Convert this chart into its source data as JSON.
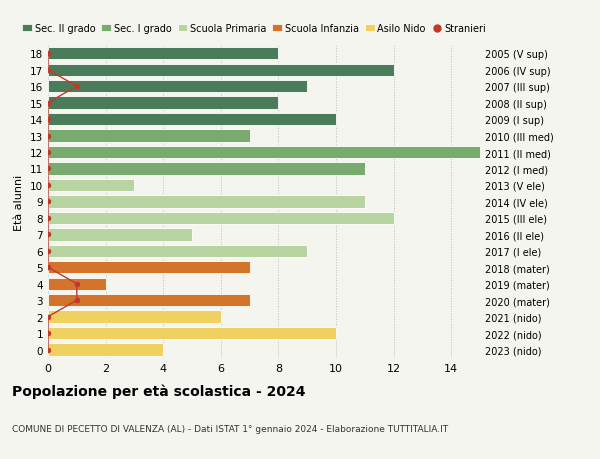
{
  "ages": [
    18,
    17,
    16,
    15,
    14,
    13,
    12,
    11,
    10,
    9,
    8,
    7,
    6,
    5,
    4,
    3,
    2,
    1,
    0
  ],
  "years": [
    "2005 (V sup)",
    "2006 (IV sup)",
    "2007 (III sup)",
    "2008 (II sup)",
    "2009 (I sup)",
    "2010 (III med)",
    "2011 (II med)",
    "2012 (I med)",
    "2013 (V ele)",
    "2014 (IV ele)",
    "2015 (III ele)",
    "2016 (II ele)",
    "2017 (I ele)",
    "2018 (mater)",
    "2019 (mater)",
    "2020 (mater)",
    "2021 (nido)",
    "2022 (nido)",
    "2023 (nido)"
  ],
  "values": [
    8,
    12,
    9,
    8,
    10,
    7,
    15,
    11,
    3,
    11,
    12,
    5,
    9,
    7,
    2,
    7,
    6,
    10,
    4
  ],
  "stranieri_x": [
    0,
    0,
    1,
    0,
    0,
    0,
    0,
    0,
    0,
    0,
    0,
    0,
    0,
    0,
    1,
    1,
    0,
    0,
    0
  ],
  "bar_colors": [
    "#4a7c59",
    "#4a7c59",
    "#4a7c59",
    "#4a7c59",
    "#4a7c59",
    "#7aab6e",
    "#7aab6e",
    "#7aab6e",
    "#b8d4a0",
    "#b8d4a0",
    "#b8d4a0",
    "#b8d4a0",
    "#b8d4a0",
    "#d4732a",
    "#d4732a",
    "#d4732a",
    "#f0d060",
    "#f0d060",
    "#f0d060"
  ],
  "legend_labels": [
    "Sec. II grado",
    "Sec. I grado",
    "Scuola Primaria",
    "Scuola Infanzia",
    "Asilo Nido",
    "Stranieri"
  ],
  "legend_colors": [
    "#4a7c59",
    "#7aab6e",
    "#b8d4a0",
    "#d4732a",
    "#f0d060",
    "#c0392b"
  ],
  "stranieri_color": "#c0392b",
  "title": "Popolazione per età scolastica - 2024",
  "subtitle": "COMUNE DI PECETTO DI VALENZA (AL) - Dati ISTAT 1° gennaio 2024 - Elaborazione TUTTITALIA.IT",
  "ylabel_left": "Età alunni",
  "xlim": [
    0,
    15
  ],
  "background_color": "#f5f5f0",
  "bar_edge_color": "white",
  "grid_color": "#bbbbbb"
}
